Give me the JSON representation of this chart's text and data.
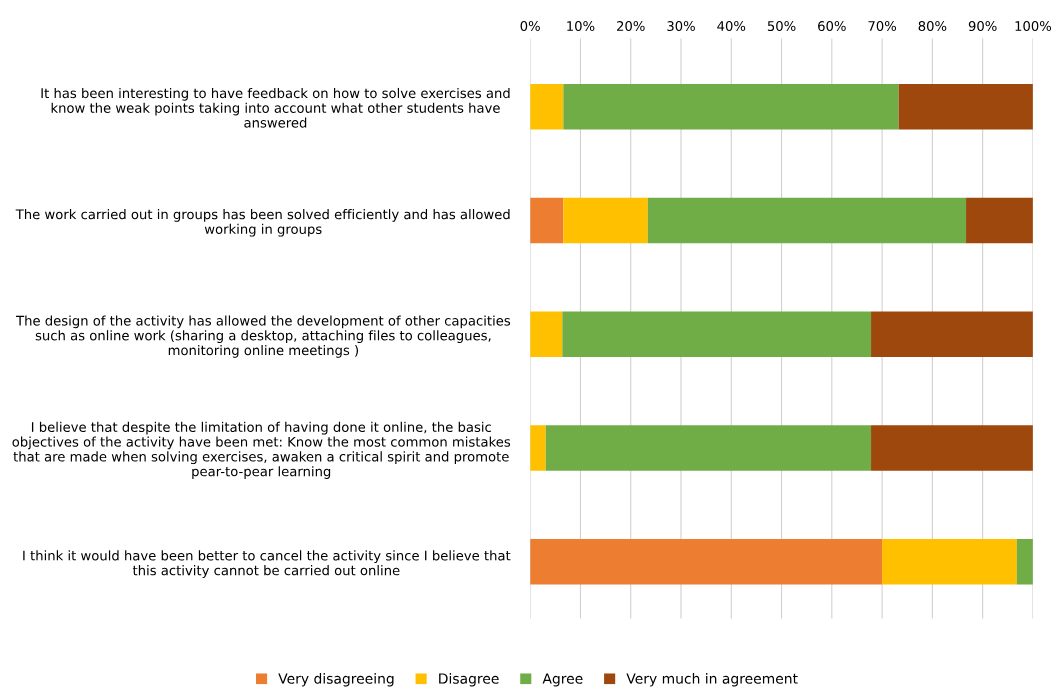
{
  "chart_data": {
    "type": "bar",
    "orientation": "horizontal",
    "stacked": true,
    "categories": [
      "It has been interesting to have feedback on how to solve exercises and\nknow the weak points taking into account what other students have\nanswered",
      "The work carried out in groups has been solved efficiently and has allowed\nworking in groups",
      "The design of the activity has allowed the development of other capacities\nsuch as online work (sharing a desktop, attaching files to colleagues,\nmonitoring online meetings )",
      "I believe that despite the limitation of having done it online, the basic\nobjectives of the activity have been met: Know the most common mistakes\nthat are made when solving exercises, awaken a critical spirit and promote\npear-to-pear learning",
      "I think it would have been better to cancel the activity since I believe that\nthis activity cannot be carried out online"
    ],
    "series": [
      {
        "name": "Very disagreeing",
        "color": "#ed7d31",
        "values": [
          0,
          6.6,
          0,
          0,
          70
        ]
      },
      {
        "name": "Disagree",
        "color": "#ffc000",
        "values": [
          6.6,
          16.8,
          6.4,
          3.1,
          26.8
        ]
      },
      {
        "name": "Agree",
        "color": "#70ad47",
        "values": [
          66.7,
          63.3,
          61.4,
          64.7,
          3.2
        ]
      },
      {
        "name": "Very much in agreement",
        "color": "#9e480e",
        "values": [
          26.7,
          13.3,
          32.2,
          32.2,
          0
        ]
      }
    ],
    "xlim": [
      0,
      100
    ],
    "xticks": [
      {
        "value": 0,
        "label": "0%"
      },
      {
        "value": 10,
        "label": "10%"
      },
      {
        "value": 20,
        "label": "20%"
      },
      {
        "value": 30,
        "label": "30%"
      },
      {
        "value": 40,
        "label": "40%"
      },
      {
        "value": 50,
        "label": "50%"
      },
      {
        "value": 60,
        "label": "60%"
      },
      {
        "value": 70,
        "label": "70%"
      },
      {
        "value": 80,
        "label": "80%"
      },
      {
        "value": 90,
        "label": "90%"
      },
      {
        "value": 100,
        "label": "100%"
      }
    ],
    "grid": "x",
    "legend": "bottom"
  }
}
